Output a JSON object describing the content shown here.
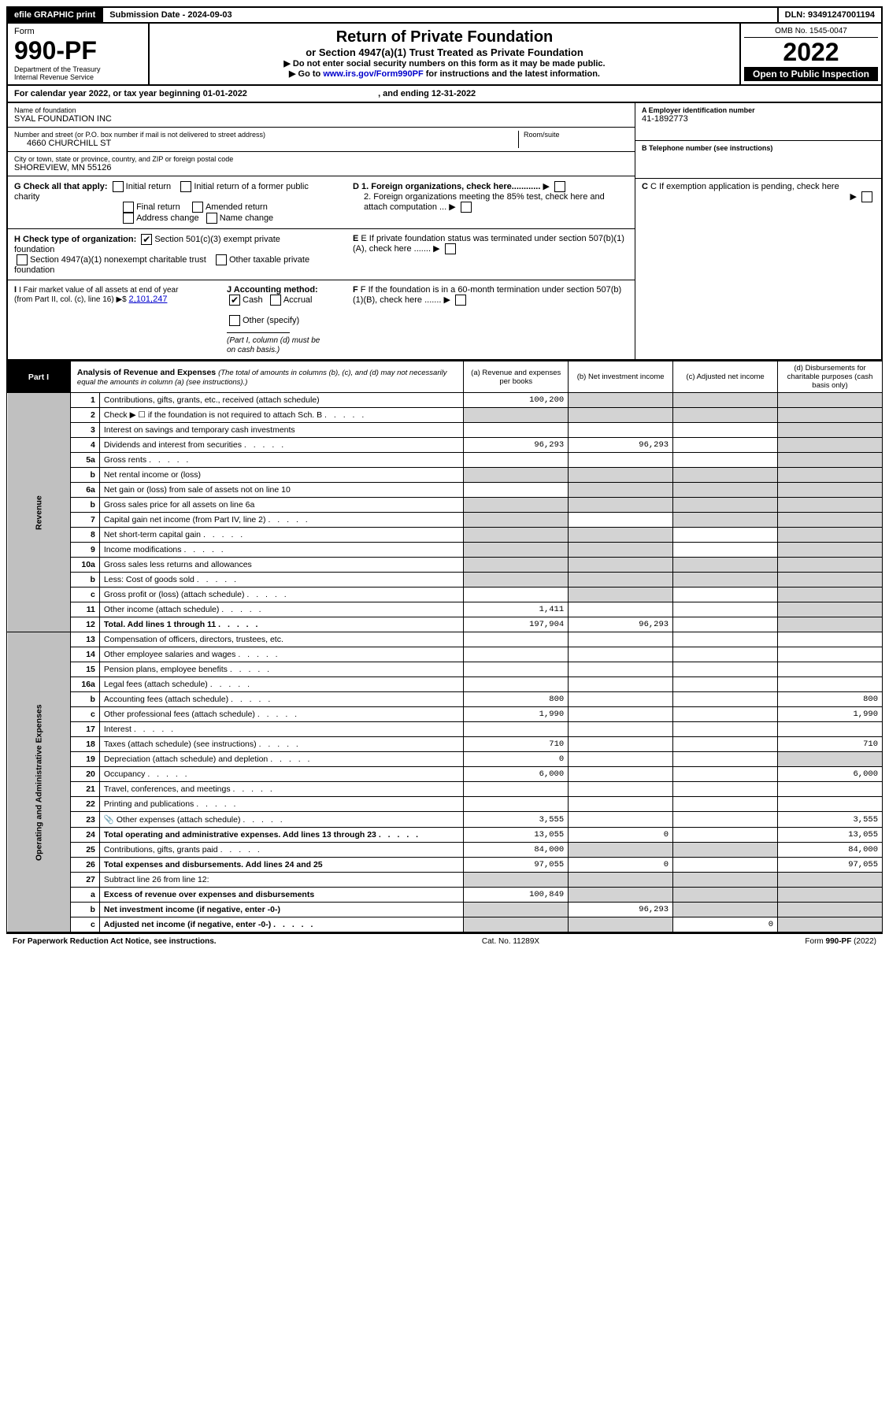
{
  "header": {
    "efile": "efile GRAPHIC print",
    "submission_label": "Submission Date - ",
    "submission_date": "2024-09-03",
    "dln_label": "DLN: ",
    "dln": "93491247001194"
  },
  "title_block": {
    "form": "Form",
    "form_number": "990-PF",
    "dept": "Department of the Treasury",
    "irs": "Internal Revenue Service",
    "title": "Return of Private Foundation",
    "subtitle": "or Section 4947(a)(1) Trust Treated as Private Foundation",
    "note1": "▶ Do not enter social security numbers on this form as it may be made public.",
    "note2_pre": "▶ Go to ",
    "note2_link": "www.irs.gov/Form990PF",
    "note2_post": " for instructions and the latest information.",
    "omb": "OMB No. 1545-0047",
    "year": "2022",
    "open": "Open to Public Inspection"
  },
  "calyear": {
    "pre": "For calendar year 2022, or tax year beginning ",
    "begin": "01-01-2022",
    "mid": " , and ending ",
    "end": "12-31-2022"
  },
  "foundation": {
    "name_label": "Name of foundation",
    "name": "SYAL FOUNDATION INC",
    "street_label": "Number and street (or P.O. box number if mail is not delivered to street address)",
    "street": "4660 CHURCHILL ST",
    "room_label": "Room/suite",
    "room": "",
    "city_label": "City or town, state or province, country, and ZIP or foreign postal code",
    "city": "SHOREVIEW, MN  55126",
    "ein_label": "A Employer identification number",
    "ein": "41-1892773",
    "phone_label": "B Telephone number (see instructions)",
    "phone": "",
    "c_label": "C If exemption application is pending, check here",
    "d1_label": "D 1. Foreign organizations, check here............",
    "d2_label": "2. Foreign organizations meeting the 85% test, check here and attach computation ...",
    "e_label": "E  If private foundation status was terminated under section 507(b)(1)(A), check here .......",
    "f_label": "F  If the foundation is in a 60-month termination under section 507(b)(1)(B), check here .......",
    "g_label": "G Check all that apply:",
    "g_opts": [
      "Initial return",
      "Initial return of a former public charity",
      "Final return",
      "Amended return",
      "Address change",
      "Name change"
    ],
    "h_label": "H Check type of organization:",
    "h1": "Section 501(c)(3) exempt private foundation",
    "h2": "Section 4947(a)(1) nonexempt charitable trust",
    "h3": "Other taxable private foundation",
    "i_label": "I Fair market value of all assets at end of year (from Part II, col. (c), line 16) ▶$ ",
    "i_val": "2,101,247",
    "j_label": "J Accounting method:",
    "j_cash": "Cash",
    "j_accrual": "Accrual",
    "j_other": "Other (specify)",
    "j_note": "(Part I, column (d) must be on cash basis.)"
  },
  "part1": {
    "label": "Part I",
    "title": "Analysis of Revenue and Expenses",
    "subtitle": "(The total of amounts in columns (b), (c), and (d) may not necessarily equal the amounts in column (a) (see instructions).)",
    "cols": {
      "a": "(a) Revenue and expenses per books",
      "b": "(b) Net investment income",
      "c": "(c) Adjusted net income",
      "d": "(d) Disbursements for charitable purposes (cash basis only)"
    },
    "side_rev": "Revenue",
    "side_exp": "Operating and Administrative Expenses"
  },
  "rows": [
    {
      "n": "1",
      "desc": "Contributions, gifts, grants, etc., received (attach schedule)",
      "a": "100,200",
      "b": null,
      "c": null,
      "d": null,
      "grey_b": true,
      "grey_c": true,
      "grey_d": true
    },
    {
      "n": "2",
      "desc": "Check ▶ ☐ if the foundation is not required to attach Sch. B",
      "a": null,
      "b": null,
      "c": null,
      "d": null,
      "grey_a": true,
      "grey_b": true,
      "grey_c": true,
      "grey_d": true,
      "dots": true
    },
    {
      "n": "3",
      "desc": "Interest on savings and temporary cash investments",
      "a": "",
      "b": "",
      "c": "",
      "d": null,
      "grey_d": true
    },
    {
      "n": "4",
      "desc": "Dividends and interest from securities",
      "a": "96,293",
      "b": "96,293",
      "c": "",
      "d": null,
      "grey_d": true,
      "dots": true
    },
    {
      "n": "5a",
      "desc": "Gross rents",
      "a": "",
      "b": "",
      "c": "",
      "d": null,
      "grey_d": true,
      "dots": true
    },
    {
      "n": "b",
      "desc": "Net rental income or (loss)",
      "a": null,
      "b": null,
      "c": null,
      "d": null,
      "grey_a": true,
      "grey_b": true,
      "grey_c": true,
      "grey_d": true
    },
    {
      "n": "6a",
      "desc": "Net gain or (loss) from sale of assets not on line 10",
      "a": "",
      "b": null,
      "c": null,
      "d": null,
      "grey_b": true,
      "grey_c": true,
      "grey_d": true
    },
    {
      "n": "b",
      "desc": "Gross sales price for all assets on line 6a",
      "a": null,
      "b": null,
      "c": null,
      "d": null,
      "grey_a": true,
      "grey_b": true,
      "grey_c": true,
      "grey_d": true
    },
    {
      "n": "7",
      "desc": "Capital gain net income (from Part IV, line 2)",
      "a": null,
      "b": "",
      "c": null,
      "d": null,
      "grey_a": true,
      "grey_c": true,
      "grey_d": true,
      "dots": true
    },
    {
      "n": "8",
      "desc": "Net short-term capital gain",
      "a": null,
      "b": null,
      "c": "",
      "d": null,
      "grey_a": true,
      "grey_b": true,
      "grey_d": true,
      "dots": true
    },
    {
      "n": "9",
      "desc": "Income modifications",
      "a": null,
      "b": null,
      "c": "",
      "d": null,
      "grey_a": true,
      "grey_b": true,
      "grey_d": true,
      "dots": true
    },
    {
      "n": "10a",
      "desc": "Gross sales less returns and allowances",
      "a": null,
      "b": null,
      "c": null,
      "d": null,
      "grey_a": true,
      "grey_b": true,
      "grey_c": true,
      "grey_d": true
    },
    {
      "n": "b",
      "desc": "Less: Cost of goods sold",
      "a": null,
      "b": null,
      "c": null,
      "d": null,
      "grey_a": true,
      "grey_b": true,
      "grey_c": true,
      "grey_d": true,
      "dots": true
    },
    {
      "n": "c",
      "desc": "Gross profit or (loss) (attach schedule)",
      "a": "",
      "b": null,
      "c": "",
      "d": null,
      "grey_b": true,
      "grey_d": true,
      "dots": true
    },
    {
      "n": "11",
      "desc": "Other income (attach schedule)",
      "a": "1,411",
      "b": "",
      "c": "",
      "d": null,
      "grey_d": true,
      "dots": true
    },
    {
      "n": "12",
      "desc": "Total. Add lines 1 through 11",
      "a": "197,904",
      "b": "96,293",
      "c": "",
      "d": null,
      "grey_d": true,
      "bold": true,
      "dots": true
    },
    {
      "n": "13",
      "desc": "Compensation of officers, directors, trustees, etc.",
      "a": "",
      "b": "",
      "c": "",
      "d": ""
    },
    {
      "n": "14",
      "desc": "Other employee salaries and wages",
      "a": "",
      "b": "",
      "c": "",
      "d": "",
      "dots": true
    },
    {
      "n": "15",
      "desc": "Pension plans, employee benefits",
      "a": "",
      "b": "",
      "c": "",
      "d": "",
      "dots": true
    },
    {
      "n": "16a",
      "desc": "Legal fees (attach schedule)",
      "a": "",
      "b": "",
      "c": "",
      "d": "",
      "dots": true
    },
    {
      "n": "b",
      "desc": "Accounting fees (attach schedule)",
      "a": "800",
      "b": "",
      "c": "",
      "d": "800",
      "dots": true
    },
    {
      "n": "c",
      "desc": "Other professional fees (attach schedule)",
      "a": "1,990",
      "b": "",
      "c": "",
      "d": "1,990",
      "dots": true
    },
    {
      "n": "17",
      "desc": "Interest",
      "a": "",
      "b": "",
      "c": "",
      "d": "",
      "dots": true
    },
    {
      "n": "18",
      "desc": "Taxes (attach schedule) (see instructions)",
      "a": "710",
      "b": "",
      "c": "",
      "d": "710",
      "dots": true
    },
    {
      "n": "19",
      "desc": "Depreciation (attach schedule) and depletion",
      "a": "0",
      "b": "",
      "c": "",
      "d": null,
      "grey_d": true,
      "dots": true
    },
    {
      "n": "20",
      "desc": "Occupancy",
      "a": "6,000",
      "b": "",
      "c": "",
      "d": "6,000",
      "dots": true
    },
    {
      "n": "21",
      "desc": "Travel, conferences, and meetings",
      "a": "",
      "b": "",
      "c": "",
      "d": "",
      "dots": true
    },
    {
      "n": "22",
      "desc": "Printing and publications",
      "a": "",
      "b": "",
      "c": "",
      "d": "",
      "dots": true
    },
    {
      "n": "23",
      "desc": "Other expenses (attach schedule)",
      "a": "3,555",
      "b": "",
      "c": "",
      "d": "3,555",
      "icon": true,
      "dots": true
    },
    {
      "n": "24",
      "desc": "Total operating and administrative expenses. Add lines 13 through 23",
      "a": "13,055",
      "b": "0",
      "c": "",
      "d": "13,055",
      "bold": true,
      "dots": true
    },
    {
      "n": "25",
      "desc": "Contributions, gifts, grants paid",
      "a": "84,000",
      "b": null,
      "c": null,
      "d": "84,000",
      "grey_b": true,
      "grey_c": true,
      "dots": true
    },
    {
      "n": "26",
      "desc": "Total expenses and disbursements. Add lines 24 and 25",
      "a": "97,055",
      "b": "0",
      "c": "",
      "d": "97,055",
      "bold": true
    },
    {
      "n": "27",
      "desc": "Subtract line 26 from line 12:",
      "a": null,
      "b": null,
      "c": null,
      "d": null,
      "grey_a": true,
      "grey_b": true,
      "grey_c": true,
      "grey_d": true
    },
    {
      "n": "a",
      "desc": "Excess of revenue over expenses and disbursements",
      "a": "100,849",
      "b": null,
      "c": null,
      "d": null,
      "grey_b": true,
      "grey_c": true,
      "grey_d": true,
      "bold": true
    },
    {
      "n": "b",
      "desc": "Net investment income (if negative, enter -0-)",
      "a": null,
      "b": "96,293",
      "c": null,
      "d": null,
      "grey_a": true,
      "grey_c": true,
      "grey_d": true,
      "bold": true
    },
    {
      "n": "c",
      "desc": "Adjusted net income (if negative, enter -0-)",
      "a": null,
      "b": null,
      "c": "0",
      "d": null,
      "grey_a": true,
      "grey_b": true,
      "grey_d": true,
      "bold": true,
      "dots": true
    }
  ],
  "footer": {
    "left": "For Paperwork Reduction Act Notice, see instructions.",
    "mid": "Cat. No. 11289X",
    "right": "Form 990-PF (2022)"
  },
  "colors": {
    "black": "#000000",
    "grey": "#d3d3d3",
    "link": "#0000cc"
  }
}
